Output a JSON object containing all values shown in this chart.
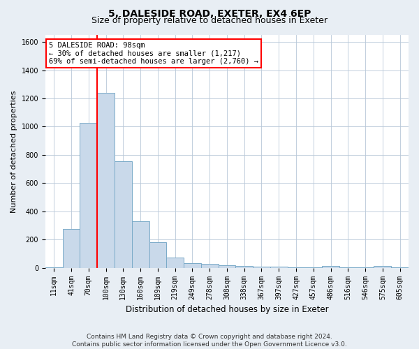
{
  "title": "5, DALESIDE ROAD, EXETER, EX4 6EP",
  "subtitle": "Size of property relative to detached houses in Exeter",
  "xlabel": "Distribution of detached houses by size in Exeter",
  "ylabel": "Number of detached properties",
  "footer_line1": "Contains HM Land Registry data © Crown copyright and database right 2024.",
  "footer_line2": "Contains public sector information licensed under the Open Government Licence v3.0.",
  "annotation_line1": "5 DALESIDE ROAD: 98sqm",
  "annotation_line2": "← 30% of detached houses are smaller (1,217)",
  "annotation_line3": "69% of semi-detached houses are larger (2,760) →",
  "bar_color": "#c9d9ea",
  "bar_edge_color": "#7aaac8",
  "vline_color": "red",
  "vline_x_index": 3,
  "categories": [
    "11sqm",
    "41sqm",
    "70sqm",
    "100sqm",
    "130sqm",
    "160sqm",
    "189sqm",
    "219sqm",
    "249sqm",
    "278sqm",
    "308sqm",
    "338sqm",
    "367sqm",
    "397sqm",
    "427sqm",
    "457sqm",
    "486sqm",
    "516sqm",
    "546sqm",
    "575sqm",
    "605sqm"
  ],
  "values": [
    5,
    275,
    1025,
    1240,
    755,
    330,
    180,
    75,
    35,
    30,
    20,
    15,
    10,
    10,
    5,
    3,
    15,
    2,
    1,
    15,
    1
  ],
  "ylim": [
    0,
    1650
  ],
  "yticks": [
    0,
    200,
    400,
    600,
    800,
    1000,
    1200,
    1400,
    1600
  ],
  "bg_color": "#e8eef4",
  "plot_bg_color": "#ffffff",
  "grid_color": "#b8c8d8",
  "title_fontsize": 10,
  "subtitle_fontsize": 9,
  "tick_fontsize": 7,
  "ylabel_fontsize": 8,
  "xlabel_fontsize": 8.5,
  "annotation_fontsize": 7.5,
  "footer_fontsize": 6.5
}
